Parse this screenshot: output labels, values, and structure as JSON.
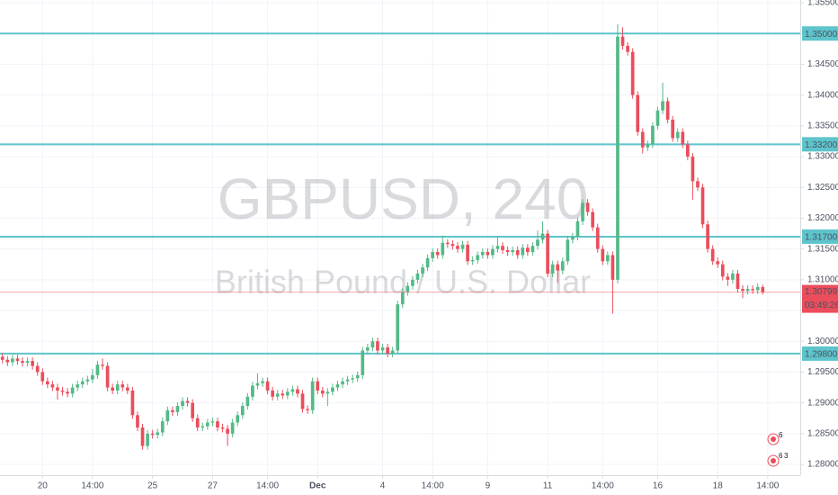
{
  "chart_data": {
    "type": "candlestick",
    "title": "GBPUSD, 240",
    "subtitle": "British Pound / U.S. Dollar",
    "xlim": [
      -0.5,
      159.5
    ],
    "xticks": [
      {
        "value": 8,
        "label": "20"
      },
      {
        "value": 18,
        "label": "14:00"
      },
      {
        "value": 30,
        "label": "25"
      },
      {
        "value": 42,
        "label": "27"
      },
      {
        "value": 53,
        "label": "14:00"
      },
      {
        "value": 63,
        "label": "Dec"
      },
      {
        "value": 76,
        "label": "4"
      },
      {
        "value": 86,
        "label": "14:00"
      },
      {
        "value": 97,
        "label": "9"
      },
      {
        "value": 109,
        "label": "11"
      },
      {
        "value": 120,
        "label": "14:00"
      },
      {
        "value": 131,
        "label": "16"
      },
      {
        "value": 143,
        "label": "18"
      },
      {
        "value": 153,
        "label": "14:00"
      }
    ],
    "ylim": [
      1.27825,
      1.35544
    ],
    "yticks": [
      {
        "value": 1.28,
        "label": "1.28000"
      },
      {
        "value": 1.285,
        "label": "1.28500"
      },
      {
        "value": 1.29,
        "label": "1.29000"
      },
      {
        "value": 1.295,
        "label": "1.29500"
      },
      {
        "value": 1.3,
        "label": "1.30000"
      },
      {
        "value": 1.305,
        "label": "1.30500"
      },
      {
        "value": 1.31,
        "label": "1.31000"
      },
      {
        "value": 1.315,
        "label": "1.31500"
      },
      {
        "value": 1.32,
        "label": "1.32000"
      },
      {
        "value": 1.325,
        "label": "1.32500"
      },
      {
        "value": 1.33,
        "label": "1.33000"
      },
      {
        "value": 1.335,
        "label": "1.33500"
      },
      {
        "value": 1.34,
        "label": "1.34000"
      },
      {
        "value": 1.345,
        "label": "1.34500"
      },
      {
        "value": 1.35,
        "label": "1.35000"
      },
      {
        "value": 1.355,
        "label": "1.35500"
      }
    ],
    "grid": true,
    "up_color": "#53b987",
    "down_color": "#eb4d5c",
    "level_color": "#5ec4cc",
    "open": [
      1.2975,
      1.297,
      1.2966,
      1.2972,
      1.2968,
      1.2965,
      1.2968,
      1.296,
      1.295,
      1.2935,
      1.293,
      1.2925,
      1.292,
      1.2918,
      1.2915,
      1.2925,
      1.293,
      1.2935,
      1.2938,
      1.2945,
      1.2962,
      1.296,
      1.2925,
      1.292,
      1.293,
      1.2925,
      1.292,
      1.288,
      1.286,
      1.283,
      1.285,
      1.2848,
      1.2852,
      1.287,
      1.2888,
      1.2885,
      1.2895,
      1.2903,
      1.29,
      1.2875,
      1.286,
      1.2862,
      1.2868,
      1.287,
      1.286,
      1.2858,
      1.285,
      1.2868,
      1.288,
      1.2895,
      1.291,
      1.2928,
      1.2932,
      1.2935,
      1.292,
      1.291,
      1.2915,
      1.2912,
      1.2918,
      1.2922,
      1.2915,
      1.289,
      1.2888,
      1.2935,
      1.292,
      1.2915,
      1.2918,
      1.2925,
      1.293,
      1.2935,
      1.2938,
      1.294,
      1.2945,
      1.2985,
      1.299,
      1.3,
      1.2985,
      1.299,
      1.298,
      1.2985,
      1.306,
      1.308,
      1.309,
      1.31,
      1.311,
      1.312,
      1.3135,
      1.3145,
      1.314,
      1.316,
      1.3158,
      1.3155,
      1.315,
      1.3157,
      1.313,
      1.3132,
      1.314,
      1.3145,
      1.314,
      1.315,
      1.3155,
      1.3148,
      1.3145,
      1.3148,
      1.314,
      1.3152,
      1.3145,
      1.3155,
      1.3165,
      1.3175,
      1.311,
      1.3125,
      1.3115,
      1.313,
      1.3165,
      1.317,
      1.3195,
      1.3225,
      1.321,
      1.3185,
      1.315,
      1.313,
      1.314,
      1.31,
      1.3495,
      1.348,
      1.347,
      1.34,
      1.334,
      1.3315,
      1.332,
      1.335,
      1.3375,
      1.339,
      1.336,
      1.333,
      1.334,
      1.332,
      1.33,
      1.326,
      1.325,
      1.319,
      1.315,
      1.313,
      1.3125,
      1.3105,
      1.31,
      1.311,
      1.3085,
      1.3082,
      1.3085,
      1.3083,
      1.3088
    ],
    "high": [
      1.2981,
      1.2976,
      1.2978,
      1.2978,
      1.2974,
      1.2974,
      1.2974,
      1.2966,
      1.2956,
      1.2941,
      1.2936,
      1.2931,
      1.2926,
      1.2924,
      1.2931,
      1.2936,
      1.2941,
      1.2944,
      1.2955,
      1.2968,
      1.2972,
      1.2966,
      1.2931,
      1.2936,
      1.2936,
      1.2931,
      1.2926,
      1.2886,
      1.2866,
      1.2856,
      1.2856,
      1.2858,
      1.2876,
      1.2894,
      1.2894,
      1.2901,
      1.2909,
      1.2909,
      1.2906,
      1.2881,
      1.2868,
      1.2874,
      1.2876,
      1.2876,
      1.2866,
      1.2864,
      1.2874,
      1.2886,
      1.2901,
      1.2916,
      1.2934,
      1.2948,
      1.2941,
      1.2941,
      1.2926,
      1.2921,
      1.2921,
      1.2924,
      1.2928,
      1.2928,
      1.2921,
      1.2896,
      1.2941,
      1.2941,
      1.2926,
      1.2924,
      1.2931,
      1.2936,
      1.2941,
      1.2944,
      1.2946,
      1.2951,
      1.2991,
      1.2996,
      1.3006,
      1.3006,
      1.2996,
      1.2996,
      1.2991,
      1.3066,
      1.3086,
      1.3096,
      1.3106,
      1.3116,
      1.3126,
      1.3141,
      1.3151,
      1.3151,
      1.3172,
      1.3166,
      1.3164,
      1.3161,
      1.3163,
      1.3163,
      1.3138,
      1.3146,
      1.3151,
      1.3151,
      1.3156,
      1.317,
      1.3161,
      1.3154,
      1.3154,
      1.3154,
      1.3158,
      1.3158,
      1.3161,
      1.318,
      1.3195,
      1.3181,
      1.3131,
      1.3131,
      1.3136,
      1.3171,
      1.3176,
      1.3201,
      1.3231,
      1.3231,
      1.3216,
      1.3191,
      1.3156,
      1.3146,
      1.3146,
      1.3515,
      1.351,
      1.3486,
      1.3476,
      1.3406,
      1.3346,
      1.3326,
      1.3356,
      1.3381,
      1.342,
      1.3396,
      1.3366,
      1.3346,
      1.3346,
      1.3326,
      1.3306,
      1.3266,
      1.3256,
      1.3196,
      1.3156,
      1.3136,
      1.3131,
      1.3111,
      1.3116,
      1.3116,
      1.3091,
      1.3091,
      1.3091,
      1.3094,
      1.3092
    ],
    "low": [
      1.2964,
      1.296,
      1.296,
      1.2962,
      1.2959,
      1.2959,
      1.2954,
      1.2944,
      1.2929,
      1.2924,
      1.2919,
      1.2905,
      1.2912,
      1.2909,
      1.2909,
      1.2919,
      1.2924,
      1.2929,
      1.2932,
      1.2939,
      1.2954,
      1.2919,
      1.2914,
      1.2914,
      1.2919,
      1.2914,
      1.2874,
      1.2854,
      1.2824,
      1.2824,
      1.2842,
      1.2842,
      1.2846,
      1.2864,
      1.2879,
      1.2879,
      1.2889,
      1.2894,
      1.2869,
      1.2854,
      1.2854,
      1.2856,
      1.2862,
      1.2854,
      1.2852,
      1.283,
      1.2844,
      1.2862,
      1.2874,
      1.2889,
      1.2904,
      1.2922,
      1.2926,
      1.2914,
      1.2904,
      1.2904,
      1.2906,
      1.2906,
      1.2912,
      1.2909,
      1.2884,
      1.2882,
      1.2882,
      1.2914,
      1.2909,
      1.2895,
      1.2912,
      1.2919,
      1.2924,
      1.2929,
      1.2932,
      1.2934,
      1.2939,
      1.2979,
      1.2984,
      1.2979,
      1.2979,
      1.2974,
      1.2974,
      1.2979,
      1.3054,
      1.3074,
      1.3084,
      1.3094,
      1.3104,
      1.3114,
      1.3129,
      1.3134,
      1.3134,
      1.3152,
      1.3149,
      1.3144,
      1.3144,
      1.3124,
      1.3124,
      1.3126,
      1.3134,
      1.3134,
      1.3134,
      1.3144,
      1.3142,
      1.3139,
      1.3139,
      1.3134,
      1.3134,
      1.3139,
      1.3139,
      1.3149,
      1.3159,
      1.3104,
      1.3104,
      1.3095,
      1.3109,
      1.3124,
      1.3159,
      1.3164,
      1.3189,
      1.3204,
      1.3179,
      1.3144,
      1.3124,
      1.3124,
      1.3045,
      1.3094,
      1.3474,
      1.3464,
      1.3394,
      1.3334,
      1.3305,
      1.3309,
      1.3314,
      1.3344,
      1.3369,
      1.3354,
      1.3324,
      1.3324,
      1.3314,
      1.3294,
      1.323,
      1.3244,
      1.3184,
      1.3144,
      1.3124,
      1.3119,
      1.3099,
      1.309,
      1.3094,
      1.3079,
      1.307,
      1.3076,
      1.3077,
      1.3077,
      1.3076
    ],
    "close": [
      1.297,
      1.2966,
      1.2972,
      1.2968,
      1.2965,
      1.2968,
      1.296,
      1.295,
      1.2935,
      1.293,
      1.2925,
      1.292,
      1.2918,
      1.2915,
      1.2925,
      1.293,
      1.2935,
      1.2938,
      1.2945,
      1.2962,
      1.296,
      1.2925,
      1.292,
      1.293,
      1.2925,
      1.292,
      1.288,
      1.286,
      1.283,
      1.285,
      1.2848,
      1.2852,
      1.287,
      1.2888,
      1.2885,
      1.2895,
      1.2903,
      1.29,
      1.2875,
      1.286,
      1.2862,
      1.2868,
      1.287,
      1.286,
      1.2858,
      1.285,
      1.2868,
      1.288,
      1.2895,
      1.291,
      1.2928,
      1.2932,
      1.2935,
      1.292,
      1.291,
      1.2915,
      1.2912,
      1.2918,
      1.2922,
      1.2915,
      1.289,
      1.2888,
      1.2935,
      1.292,
      1.2915,
      1.2918,
      1.2925,
      1.293,
      1.2935,
      1.2938,
      1.294,
      1.2945,
      1.2985,
      1.299,
      1.3,
      1.2985,
      1.299,
      1.298,
      1.2985,
      1.306,
      1.308,
      1.309,
      1.31,
      1.311,
      1.312,
      1.3135,
      1.3145,
      1.314,
      1.316,
      1.3158,
      1.3155,
      1.315,
      1.3157,
      1.313,
      1.3132,
      1.314,
      1.3145,
      1.314,
      1.315,
      1.3155,
      1.3148,
      1.3145,
      1.3148,
      1.314,
      1.3152,
      1.3145,
      1.3155,
      1.3165,
      1.3175,
      1.311,
      1.3125,
      1.3115,
      1.313,
      1.3165,
      1.317,
      1.3195,
      1.3225,
      1.321,
      1.3185,
      1.315,
      1.313,
      1.314,
      1.31,
      1.3495,
      1.348,
      1.347,
      1.34,
      1.334,
      1.3315,
      1.332,
      1.335,
      1.3375,
      1.339,
      1.336,
      1.333,
      1.334,
      1.332,
      1.33,
      1.326,
      1.325,
      1.319,
      1.315,
      1.313,
      1.3125,
      1.3105,
      1.31,
      1.311,
      1.3085,
      1.3082,
      1.3085,
      1.3083,
      1.3088,
      1.308
    ],
    "levels": [
      {
        "value": 1.35,
        "label": "1.35000"
      },
      {
        "value": 1.332,
        "label": "1.33200"
      },
      {
        "value": 1.317,
        "label": "1.31700"
      },
      {
        "value": 1.298,
        "label": "1.29800"
      }
    ],
    "last_price": {
      "value": 1.30799,
      "label": "1.30799"
    },
    "countdown": "03:49:26",
    "event_badges": [
      "6",
      "6",
      "3"
    ]
  }
}
